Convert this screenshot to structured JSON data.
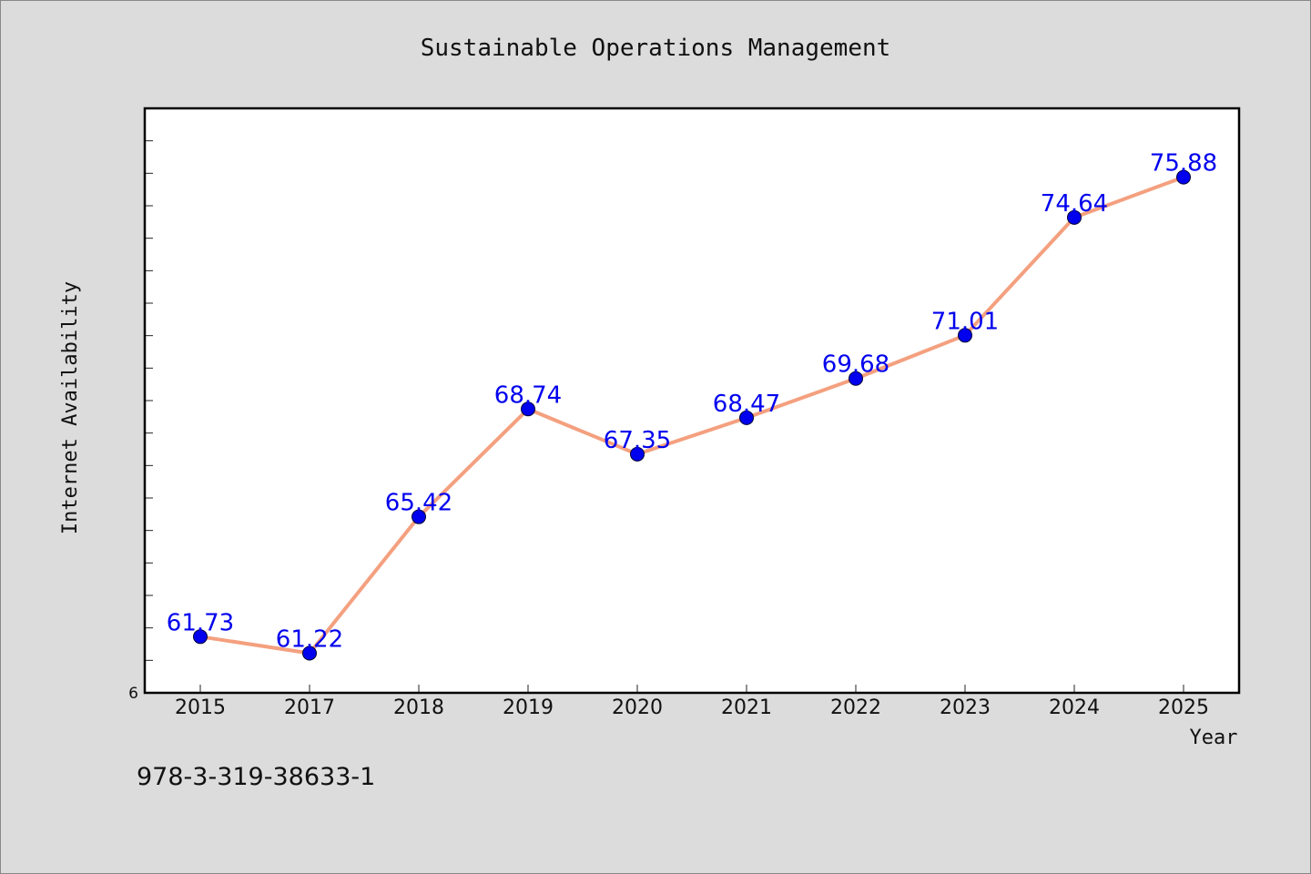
{
  "chart_data": {
    "type": "line",
    "title": "Sustainable Operations Management",
    "xlabel": "Year",
    "ylabel": "Internet Availability",
    "categories": [
      "2015",
      "2017",
      "2018",
      "2019",
      "2020",
      "2021",
      "2022",
      "2023",
      "2024",
      "2025"
    ],
    "series": [
      {
        "values": [
          61.73,
          61.22,
          65.42,
          68.74,
          67.35,
          68.47,
          69.68,
          71.01,
          74.64,
          75.88
        ],
        "labels": [
          "61.73",
          "61.22",
          "65.42",
          "68.74",
          "67.35",
          "68.47",
          "69.68",
          "71.01",
          "74.64",
          "75.88"
        ]
      }
    ],
    "ylim": [
      60,
      78
    ],
    "y_tick_labels": [
      "6"
    ],
    "grid": false,
    "colors": {
      "line": "#f4a07f",
      "marker": "#0000ee",
      "data_label": "#0000ee",
      "background": "#dcdcdc",
      "plot_background": "#ffffff"
    }
  },
  "footer": {
    "isbn": "978-3-319-38633-1"
  }
}
